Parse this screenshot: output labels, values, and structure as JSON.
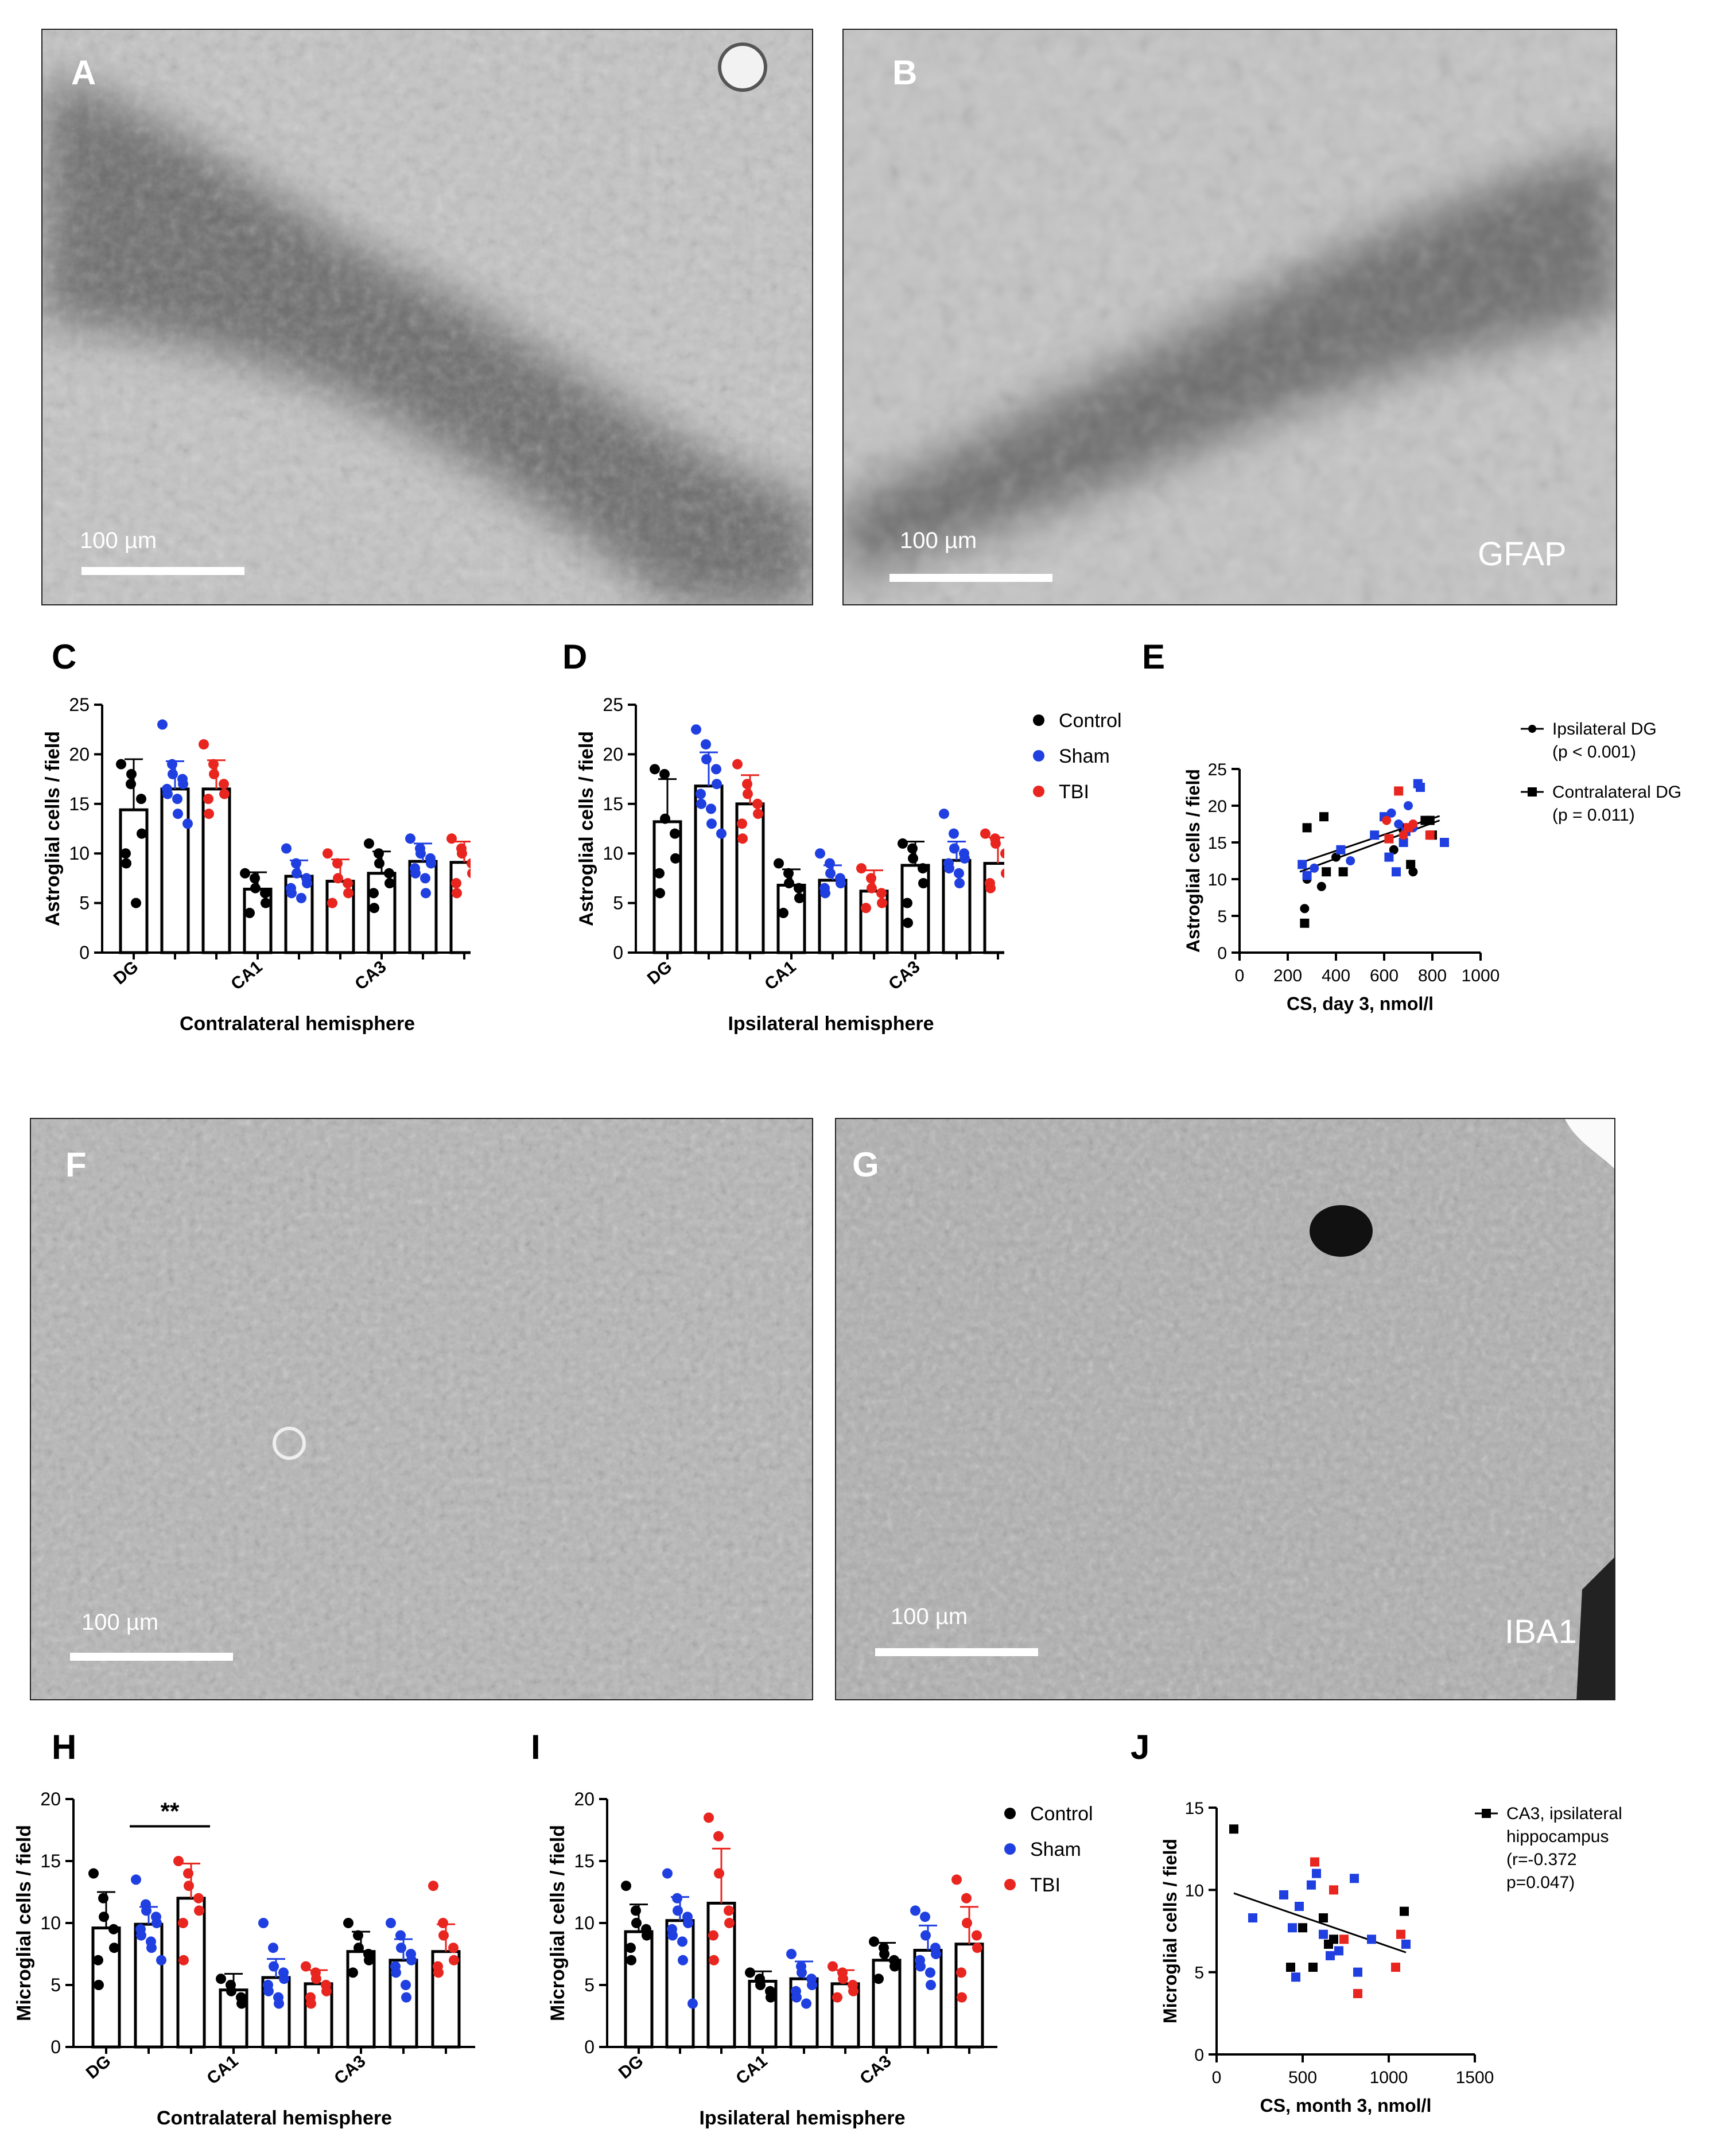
{
  "panels": {
    "A": {
      "letter": "A",
      "scalebar": "100 µm"
    },
    "B": {
      "letter": "B",
      "scalebar": "100 µm",
      "stain": "GFAP"
    },
    "F": {
      "letter": "F",
      "scalebar": "100 µm"
    },
    "G": {
      "letter": "G",
      "scalebar": "100 µm",
      "stain": "IBA1"
    }
  },
  "letters": {
    "C": "C",
    "D": "D",
    "E": "E",
    "H": "H",
    "I": "I",
    "J": "J"
  },
  "legend_groups": {
    "control": "Control",
    "sham": "Sham",
    "tbi": "TBI"
  },
  "colors": {
    "control": "#000000",
    "sham": "#1f3fe0",
    "tbi": "#e8251f"
  },
  "chart_data": [
    {
      "id": "C",
      "type": "bar",
      "ylabel": "Astroglial cells / field",
      "xlabel": "Contralateral hemisphere",
      "ylim": [
        0,
        25
      ],
      "yticks": [
        0,
        5,
        10,
        15,
        20,
        25
      ],
      "category_labels": [
        "DG",
        "",
        "",
        "CA1",
        "",
        "",
        "CA3",
        "",
        ""
      ],
      "groups": [
        "Control",
        "Sham",
        "TBI",
        "Control",
        "Sham",
        "TBI",
        "Control",
        "Sham",
        "TBI"
      ],
      "values": [
        14.4,
        16.5,
        16.5,
        6.4,
        7.7,
        7.2,
        8.0,
        9.2,
        9.1
      ],
      "errors": [
        5.1,
        2.8,
        2.9,
        1.7,
        1.6,
        2.2,
        2.2,
        1.8,
        2.1
      ],
      "points": [
        [
          19,
          17,
          18,
          15.5,
          12,
          10,
          9,
          5
        ],
        [
          23,
          19,
          18,
          17.5,
          17,
          16.5,
          16,
          15.5,
          14,
          13
        ],
        [
          21,
          19,
          18,
          17,
          16,
          15.5,
          14
        ],
        [
          8,
          7.5,
          6.5,
          6,
          5,
          4
        ],
        [
          10.5,
          9,
          8,
          7.5,
          7,
          6.5,
          6,
          5.5
        ],
        [
          10,
          9,
          7.5,
          7,
          6,
          5
        ],
        [
          11,
          10,
          9,
          8,
          7,
          6,
          4.5
        ],
        [
          11.5,
          10.5,
          10,
          9.5,
          9,
          8.5,
          8,
          7.5,
          6
        ],
        [
          11.5,
          10.5,
          10,
          9,
          8,
          7,
          6
        ]
      ]
    },
    {
      "id": "D",
      "type": "bar",
      "ylabel": "Astroglial cells / field",
      "xlabel": "Ipsilateral hemisphere",
      "ylim": [
        0,
        25
      ],
      "yticks": [
        0,
        5,
        10,
        15,
        20,
        25
      ],
      "category_labels": [
        "DG",
        "",
        "",
        "CA1",
        "",
        "",
        "CA3",
        "",
        ""
      ],
      "groups": [
        "Control",
        "Sham",
        "TBI",
        "Control",
        "Sham",
        "TBI",
        "Control",
        "Sham",
        "TBI"
      ],
      "values": [
        13.2,
        16.8,
        15.0,
        6.8,
        7.3,
        6.2,
        8.8,
        9.3,
        9.0
      ],
      "errors": [
        4.3,
        3.4,
        2.9,
        1.6,
        1.5,
        2.1,
        2.4,
        1.9,
        2.6
      ],
      "points": [
        [
          18.5,
          18,
          13.5,
          12,
          9.5,
          8,
          6
        ],
        [
          22.5,
          21,
          19.5,
          18.5,
          17,
          16,
          15,
          14.5,
          13,
          12
        ],
        [
          19,
          17,
          16,
          15,
          14,
          13,
          11.5
        ],
        [
          9,
          8,
          7,
          6.5,
          5.5,
          4
        ],
        [
          10,
          9,
          8,
          7.5,
          7,
          6.5,
          6
        ],
        [
          8.5,
          7.5,
          6.5,
          6,
          5,
          4.5
        ],
        [
          11,
          10.5,
          9.5,
          8.5,
          7,
          5,
          3
        ],
        [
          14,
          12,
          10.5,
          10,
          9.5,
          9,
          8.5,
          8,
          7
        ],
        [
          12,
          11.5,
          11,
          10,
          8,
          7,
          6.5
        ]
      ]
    },
    {
      "id": "E",
      "type": "scatter",
      "ylabel": "Astroglial cells / field",
      "xlabel": "CS, day 3, nmol/l",
      "xlim": [
        0,
        1000
      ],
      "xticks": [
        0,
        200,
        400,
        600,
        800,
        1000
      ],
      "ylim": [
        0,
        25
      ],
      "yticks": [
        0,
        5,
        10,
        15,
        20,
        25
      ],
      "legend": [
        {
          "label": "Ipsilateral DG",
          "stat": "(p < 0.001)",
          "marker": "circle"
        },
        {
          "label": "Contralateral DG",
          "stat": "(p = 0.011)",
          "marker": "square"
        }
      ],
      "series": [
        {
          "marker": "square",
          "color": "#000000",
          "x": [
            270,
            280,
            350,
            360,
            430,
            680,
            710,
            770,
            790,
            800
          ],
          "y": [
            4,
            17,
            18.5,
            11,
            11,
            17,
            12,
            18,
            18,
            16
          ]
        },
        {
          "marker": "circle",
          "color": "#000000",
          "x": [
            270,
            280,
            340,
            400,
            640,
            720
          ],
          "y": [
            6,
            10,
            9,
            13,
            14,
            11
          ]
        },
        {
          "marker": "square",
          "color": "#1f3fe0",
          "x": [
            260,
            280,
            420,
            560,
            600,
            620,
            650,
            680,
            690,
            740,
            750,
            850
          ],
          "y": [
            12,
            10.5,
            14,
            16,
            18.5,
            13,
            11,
            15,
            16.5,
            23,
            22.5,
            15
          ]
        },
        {
          "marker": "circle",
          "color": "#1f3fe0",
          "x": [
            310,
            460,
            630,
            660,
            700,
            720
          ],
          "y": [
            11.5,
            12.5,
            19,
            17.5,
            20,
            17
          ]
        },
        {
          "marker": "square",
          "color": "#e8251f",
          "x": [
            620,
            660,
            700,
            790
          ],
          "y": [
            15.5,
            22,
            17,
            16
          ]
        },
        {
          "marker": "circle",
          "color": "#e8251f",
          "x": [
            610,
            680,
            720
          ],
          "y": [
            18,
            16,
            17.5
          ]
        }
      ],
      "fits": [
        {
          "x": [
            250,
            830
          ],
          "y": [
            12.2,
            18.6
          ]
        },
        {
          "x": [
            250,
            830
          ],
          "y": [
            11.0,
            18.0
          ]
        }
      ]
    },
    {
      "id": "H",
      "type": "bar",
      "ylabel": "Microglial cells / field",
      "xlabel": "Contralateral hemisphere",
      "ylim": [
        0,
        20
      ],
      "yticks": [
        0,
        5,
        10,
        15,
        20
      ],
      "category_labels": [
        "DG",
        "",
        "",
        "CA1",
        "",
        "",
        "CA3",
        "",
        ""
      ],
      "groups": [
        "Control",
        "Sham",
        "TBI",
        "Control",
        "Sham",
        "TBI",
        "Control",
        "Sham",
        "TBI"
      ],
      "values": [
        9.6,
        9.9,
        12.0,
        4.6,
        5.6,
        5.1,
        7.7,
        7.0,
        7.7
      ],
      "errors": [
        2.9,
        1.4,
        2.8,
        1.3,
        1.5,
        1.1,
        1.6,
        1.7,
        2.2
      ],
      "significance": {
        "text": "**",
        "from": 1,
        "to": 2
      },
      "points": [
        [
          14,
          12,
          10.5,
          9.5,
          8,
          7,
          5
        ],
        [
          13.5,
          11.5,
          11,
          10.5,
          10,
          9.5,
          9,
          8.5,
          8,
          7
        ],
        [
          15,
          14,
          13,
          12,
          11,
          10,
          7
        ],
        [
          5.5,
          5,
          4.5,
          4,
          3.5
        ],
        [
          10,
          8,
          6.5,
          6,
          5.5,
          5,
          4.5,
          4,
          3.5
        ],
        [
          6.5,
          6,
          5.5,
          5,
          4.5,
          4,
          3.5
        ],
        [
          10,
          9,
          8,
          7.5,
          7,
          6
        ],
        [
          10,
          9,
          8,
          7.5,
          7,
          6.5,
          6,
          5,
          4
        ],
        [
          13,
          10,
          9,
          8,
          7,
          6.5,
          6
        ]
      ]
    },
    {
      "id": "I",
      "type": "bar",
      "ylabel": "Microglial cells / field",
      "xlabel": "Ipsilateral hemisphere",
      "ylim": [
        0,
        20
      ],
      "yticks": [
        0,
        5,
        10,
        15,
        20
      ],
      "category_labels": [
        "DG",
        "",
        "",
        "CA1",
        "",
        "",
        "CA3",
        "",
        ""
      ],
      "groups": [
        "Control",
        "Sham",
        "TBI",
        "Control",
        "Sham",
        "TBI",
        "Control",
        "Sham",
        "TBI"
      ],
      "values": [
        9.3,
        10.2,
        11.6,
        5.3,
        5.5,
        5.1,
        7.0,
        7.8,
        8.3
      ],
      "errors": [
        2.2,
        1.9,
        4.4,
        0.8,
        1.4,
        1.1,
        1.4,
        2.0,
        3.0
      ],
      "points": [
        [
          13,
          11,
          10,
          9.5,
          9,
          8,
          7
        ],
        [
          14,
          12,
          11,
          10.5,
          10,
          9.5,
          9,
          8.5,
          7,
          3.5
        ],
        [
          18.5,
          17,
          14,
          11,
          10,
          9,
          7
        ],
        [
          6,
          5.5,
          5,
          4.5,
          4
        ],
        [
          7.5,
          6.5,
          6,
          5.5,
          5,
          4.5,
          4,
          3.5
        ],
        [
          6.5,
          6,
          5.5,
          5,
          4.5,
          4
        ],
        [
          8.5,
          8,
          7.5,
          7,
          6.5,
          5.5
        ],
        [
          11,
          10.5,
          9,
          8,
          7.5,
          7,
          6.5,
          6,
          5
        ],
        [
          13.5,
          12,
          10,
          9,
          8,
          6,
          4
        ]
      ]
    },
    {
      "id": "J",
      "type": "scatter",
      "ylabel": "Microglial cells / field",
      "xlabel": "CS, month 3, nmol/l",
      "xlim": [
        0,
        1500
      ],
      "xticks": [
        0,
        500,
        1000,
        1500
      ],
      "ylim": [
        0,
        15
      ],
      "yticks": [
        0,
        5,
        10,
        15
      ],
      "legend": [
        {
          "label": "CA3, ipsilateral",
          "line2": "hippocampus",
          "stat": "(r=-0.372",
          "stat2": "p=0.047)",
          "marker": "square"
        }
      ],
      "series": [
        {
          "marker": "square",
          "color": "#000000",
          "x": [
            100,
            430,
            500,
            560,
            620,
            650,
            680,
            1090
          ],
          "y": [
            13.7,
            5.3,
            7.7,
            5.3,
            8.3,
            6.7,
            7.0,
            8.7
          ]
        },
        {
          "marker": "square",
          "color": "#1f3fe0",
          "x": [
            210,
            390,
            440,
            460,
            480,
            550,
            580,
            620,
            660,
            710,
            800,
            820,
            900,
            1100
          ],
          "y": [
            8.3,
            9.7,
            7.7,
            4.7,
            9.0,
            10.3,
            11.0,
            7.3,
            6.0,
            6.3,
            10.7,
            5.0,
            7.0,
            6.7
          ]
        },
        {
          "marker": "square",
          "color": "#e8251f",
          "x": [
            570,
            680,
            740,
            820,
            1040,
            1070
          ],
          "y": [
            11.7,
            10.0,
            7.0,
            3.7,
            5.3,
            7.3
          ]
        }
      ],
      "fits": [
        {
          "x": [
            100,
            1100
          ],
          "y": [
            9.8,
            6.2
          ]
        }
      ]
    }
  ]
}
